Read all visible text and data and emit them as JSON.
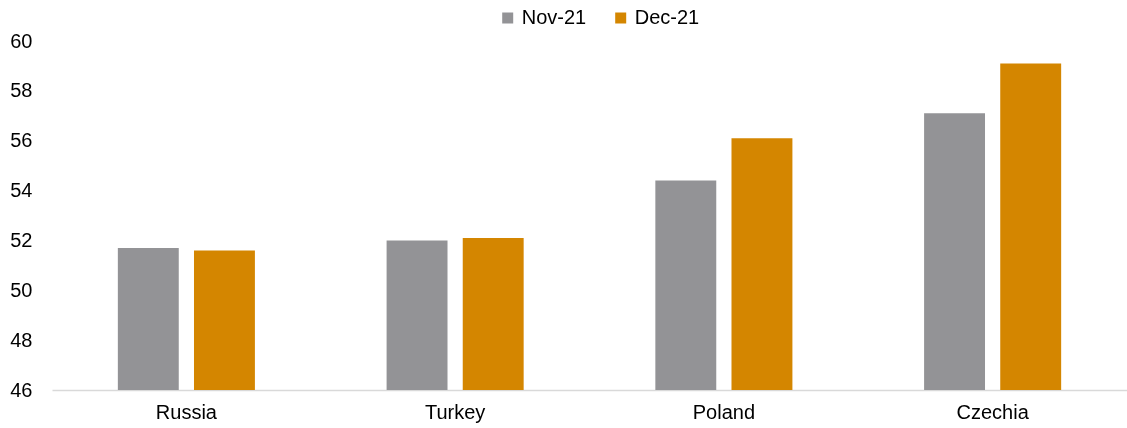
{
  "chart_data": {
    "type": "bar",
    "categories": [
      "Russia",
      "Turkey",
      "Poland",
      "Czechia"
    ],
    "series": [
      {
        "name": "Nov-21",
        "color": "#939396",
        "values": [
          51.7,
          52.0,
          54.4,
          57.1
        ]
      },
      {
        "name": "Dec-21",
        "color": "#d48600",
        "values": [
          51.6,
          52.1,
          56.1,
          59.1
        ]
      }
    ],
    "ylim": [
      46,
      60
    ],
    "yticks": [
      46,
      48,
      50,
      52,
      54,
      56,
      58,
      60
    ],
    "legend": "top"
  }
}
